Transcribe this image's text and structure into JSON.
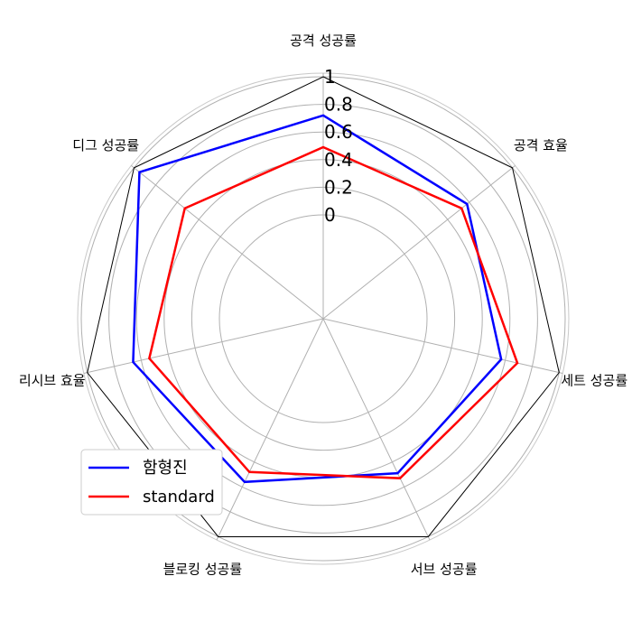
{
  "chart_data": {
    "type": "radar",
    "categories": [
      "공격 성공률",
      "공격 효율",
      "세트 성공률",
      "서브 성공률",
      "블로킹 성공률",
      "리시브 효율",
      "디그 성공률"
    ],
    "rlim": [
      0,
      1
    ],
    "ticks": [
      0,
      0.2,
      0.4,
      0.6,
      0.8,
      1
    ],
    "tick_labels": [
      "0",
      "0.2",
      "0.4",
      "0.6",
      "0.8",
      "1"
    ],
    "outline_value": 1,
    "grid": true,
    "series": [
      {
        "name": "함형진",
        "color": "#0000ff",
        "values": [
          0.72,
          0.58,
          0.57,
          0.49,
          0.56,
          0.66,
          0.95
        ]
      },
      {
        "name": "standard",
        "color": "#ff0000",
        "values": [
          0.49,
          0.53,
          0.69,
          0.53,
          0.48,
          0.54,
          0.53
        ]
      }
    ],
    "legend_position": "lower-left"
  }
}
